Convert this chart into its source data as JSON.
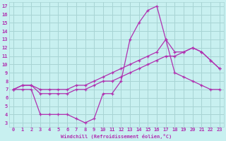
{
  "xlabel": "Windchill (Refroidissement éolien,°C)",
  "background_color": "#c8f0f0",
  "grid_color": "#a8d4d4",
  "line_color": "#b030b0",
  "xlim": [
    -0.5,
    23.5
  ],
  "ylim": [
    2.5,
    17.5
  ],
  "xticks": [
    0,
    1,
    2,
    3,
    4,
    5,
    6,
    7,
    8,
    9,
    10,
    11,
    12,
    13,
    14,
    15,
    16,
    17,
    18,
    19,
    20,
    21,
    22,
    23
  ],
  "yticks": [
    3,
    4,
    5,
    6,
    7,
    8,
    9,
    10,
    11,
    12,
    13,
    14,
    15,
    16,
    17
  ],
  "line1_x": [
    0,
    1,
    2,
    3,
    4,
    5,
    6,
    7,
    8,
    9,
    10,
    11,
    12,
    13,
    14,
    15,
    16,
    17,
    18,
    19,
    20,
    21,
    22,
    23
  ],
  "line1_y": [
    7,
    7,
    7,
    4,
    4,
    4,
    4,
    3.5,
    3,
    3.5,
    6.5,
    6.5,
    8,
    13,
    15,
    16.5,
    17,
    13,
    9,
    8.5,
    8,
    7.5,
    7,
    7
  ],
  "line2_x": [
    0,
    1,
    2,
    3,
    4,
    5,
    6,
    7,
    8,
    9,
    10,
    11,
    12,
    13,
    14,
    15,
    16,
    17,
    18,
    19,
    20,
    21,
    22,
    23
  ],
  "line2_y": [
    7,
    7.5,
    7.5,
    7,
    7,
    7,
    7,
    7.5,
    7.5,
    8,
    8.5,
    9,
    9.5,
    10,
    10.5,
    11,
    11.5,
    13,
    11.5,
    11.5,
    12,
    11.5,
    10.5,
    9.5
  ],
  "line3_x": [
    0,
    1,
    2,
    3,
    4,
    5,
    6,
    7,
    8,
    9,
    10,
    11,
    12,
    13,
    14,
    15,
    16,
    17,
    18,
    19,
    20,
    21,
    22,
    23
  ],
  "line3_y": [
    7,
    7.5,
    7.5,
    6.5,
    6.5,
    6.5,
    6.5,
    7,
    7,
    7.5,
    8,
    8,
    8.5,
    9,
    9.5,
    10,
    10.5,
    11,
    11,
    11.5,
    12,
    11.5,
    10.5,
    9.5
  ]
}
